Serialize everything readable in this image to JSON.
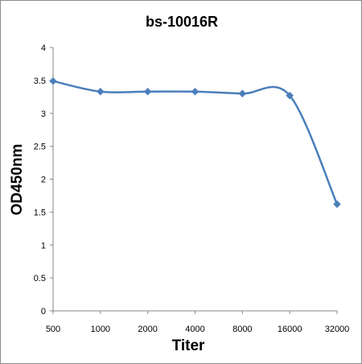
{
  "chart_data": {
    "type": "line",
    "title": "bs-10016R",
    "xlabel": "Titer",
    "ylabel": "OD450nm",
    "categories": [
      "500",
      "1000",
      "2000",
      "4000",
      "8000",
      "16000",
      "32000"
    ],
    "series": [
      {
        "values": [
          3.49,
          3.33,
          3.33,
          3.33,
          3.3,
          3.27,
          1.62
        ]
      }
    ],
    "ylim": [
      0,
      4
    ],
    "yticks": [
      "0",
      "0.5",
      "1",
      "1.5",
      "2",
      "2.5",
      "3",
      "3.5",
      "4"
    ],
    "grid": false,
    "legend": "none",
    "smooth": true,
    "colors": {
      "series": "#4a7ebb",
      "axis": "#868686"
    }
  }
}
